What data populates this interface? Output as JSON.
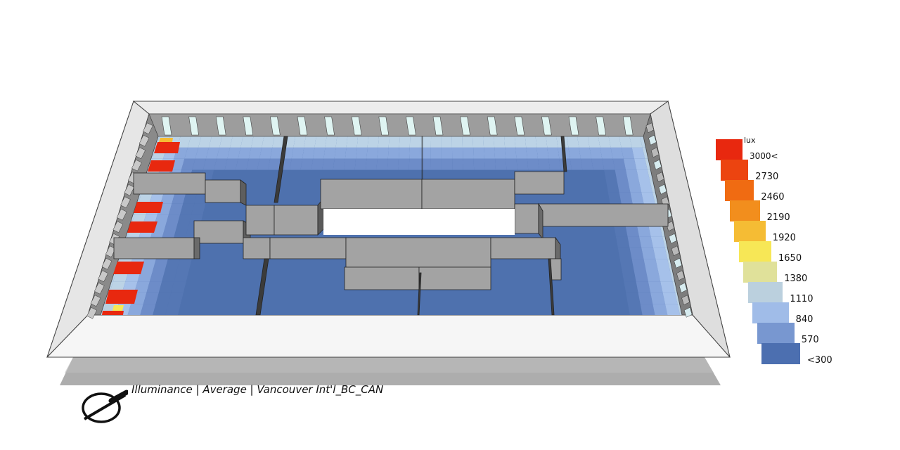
{
  "caption": "Illuminance | Average | Vancouver Int'l_BC_CAN",
  "legend": {
    "unit": "lux",
    "labels": [
      "3000<",
      "2730",
      "2460",
      "2190",
      "1920",
      "1650",
      "1380",
      "1110",
      "840",
      "570",
      "<300"
    ],
    "colors": [
      "#e8280f",
      "#ec4410",
      "#f06b12",
      "#f28e1d",
      "#f5bc34",
      "#f7e756",
      "#e0e19a",
      "#bbd0de",
      "#a0bce8",
      "#7897d0",
      "#4c6fb0"
    ]
  },
  "colors": {
    "wall": "#a3a3a3",
    "wall_shade": "#8e8e8e",
    "wall_dark": "#3b3b3b",
    "frame": "#f2f2f2",
    "base": "#adadad",
    "window": "#dff4f2",
    "floor": "#4e71ae"
  },
  "compass_icon": "compass-icon"
}
